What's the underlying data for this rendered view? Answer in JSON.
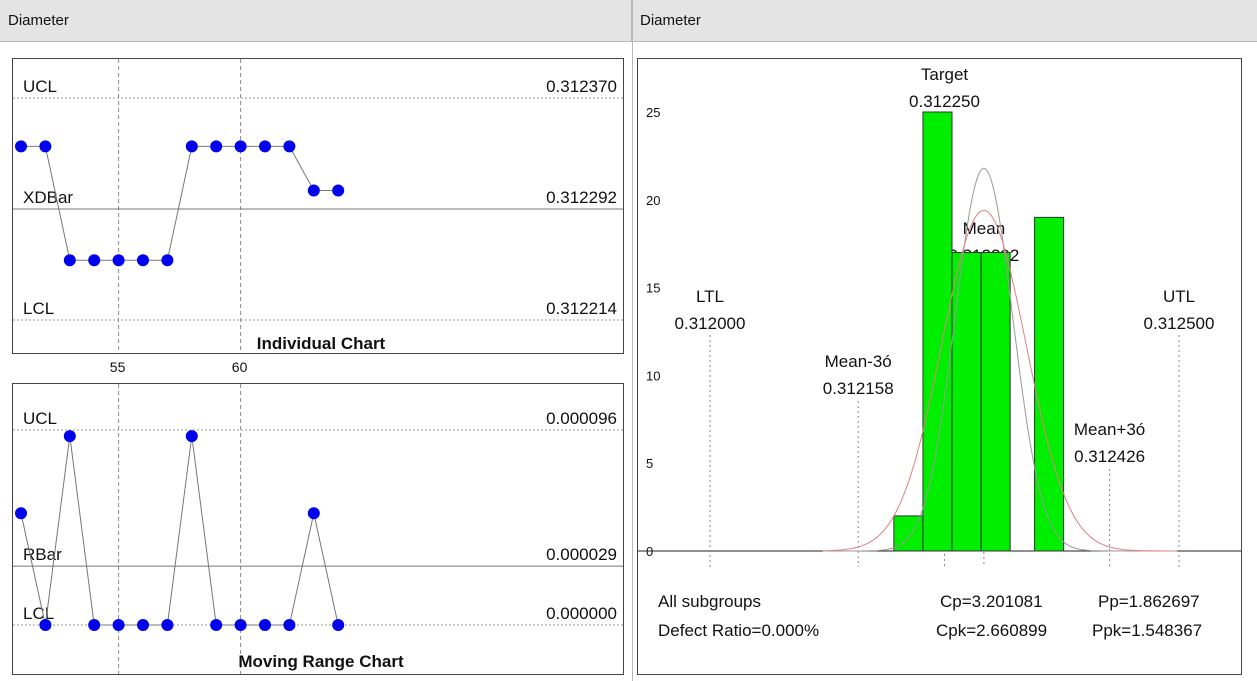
{
  "panes": {
    "left_title": "Diameter",
    "right_title": "Diameter"
  },
  "chart_data": [
    {
      "type": "line",
      "title": "Individual Chart",
      "x_ticks": [
        55,
        60
      ],
      "x": [
        51,
        52,
        53,
        54,
        55,
        56,
        57,
        58,
        59,
        60,
        61,
        62,
        63,
        64
      ],
      "values": [
        0.312336,
        0.312336,
        0.312256,
        0.312256,
        0.312256,
        0.312256,
        0.312256,
        0.312336,
        0.312336,
        0.312336,
        0.312336,
        0.312336,
        0.312305,
        0.312305
      ],
      "ylim": [
        0.312214,
        0.31237
      ],
      "limits": [
        {
          "label": "UCL",
          "value": 0.31237,
          "value_text": "0.312370"
        },
        {
          "label": "XDBar",
          "value": 0.312292,
          "value_text": "0.312292"
        },
        {
          "label": "LCL",
          "value": 0.312214,
          "value_text": "0.312214"
        }
      ]
    },
    {
      "type": "line",
      "title": "Moving Range Chart",
      "x": [
        51,
        52,
        53,
        54,
        55,
        56,
        57,
        58,
        59,
        60,
        61,
        62,
        63,
        64
      ],
      "values": [
        5.5e-05,
        0.0,
        9.3e-05,
        0.0,
        0.0,
        0.0,
        0.0,
        9.3e-05,
        0.0,
        0.0,
        0.0,
        0.0,
        5.5e-05,
        0.0
      ],
      "ylim": [
        0.0,
        9.6e-05
      ],
      "limits": [
        {
          "label": "UCL",
          "value": 9.6e-05,
          "value_text": "0.000096"
        },
        {
          "label": "RBar",
          "value": 2.9e-05,
          "value_text": "0.000029"
        },
        {
          "label": "LCL",
          "value": 0.0,
          "value_text": "0.000000"
        }
      ]
    },
    {
      "type": "bar",
      "title": "",
      "y_ticks": [
        0,
        5,
        10,
        15,
        20,
        25
      ],
      "ylim": [
        0,
        25
      ],
      "bins": [
        {
          "from": 0.312196,
          "to": 0.312227,
          "count": 2
        },
        {
          "from": 0.312227,
          "to": 0.312258,
          "count": 25
        },
        {
          "from": 0.312258,
          "to": 0.312289,
          "count": 17
        },
        {
          "from": 0.312289,
          "to": 0.31232,
          "count": 17
        },
        {
          "from": 0.312346,
          "to": 0.312377,
          "count": 19
        }
      ],
      "bar_color": "#00ee00",
      "markers": [
        {
          "label": "LTL",
          "value": 0.312,
          "value_text": "0.312000"
        },
        {
          "label": "Mean-3ó",
          "value": 0.312158,
          "value_text": "0.312158"
        },
        {
          "label": "Target",
          "value": 0.31225,
          "value_text": "0.312250"
        },
        {
          "label": "Mean",
          "value": 0.312292,
          "value_text": "0.312292"
        },
        {
          "label": "Mean+3ó",
          "value": 0.312426,
          "value_text": "0.312426"
        },
        {
          "label": "UTL",
          "value": 0.3125,
          "value_text": "0.312500"
        }
      ],
      "stats": {
        "all_subgroups": "All subgroups",
        "cp": "Cp=3.201081",
        "pp": "Pp=1.862697",
        "defect_ratio": "Defect Ratio=0.000%",
        "cpk": "Cpk=2.660899",
        "ppk": "Ppk=1.548367"
      }
    }
  ]
}
